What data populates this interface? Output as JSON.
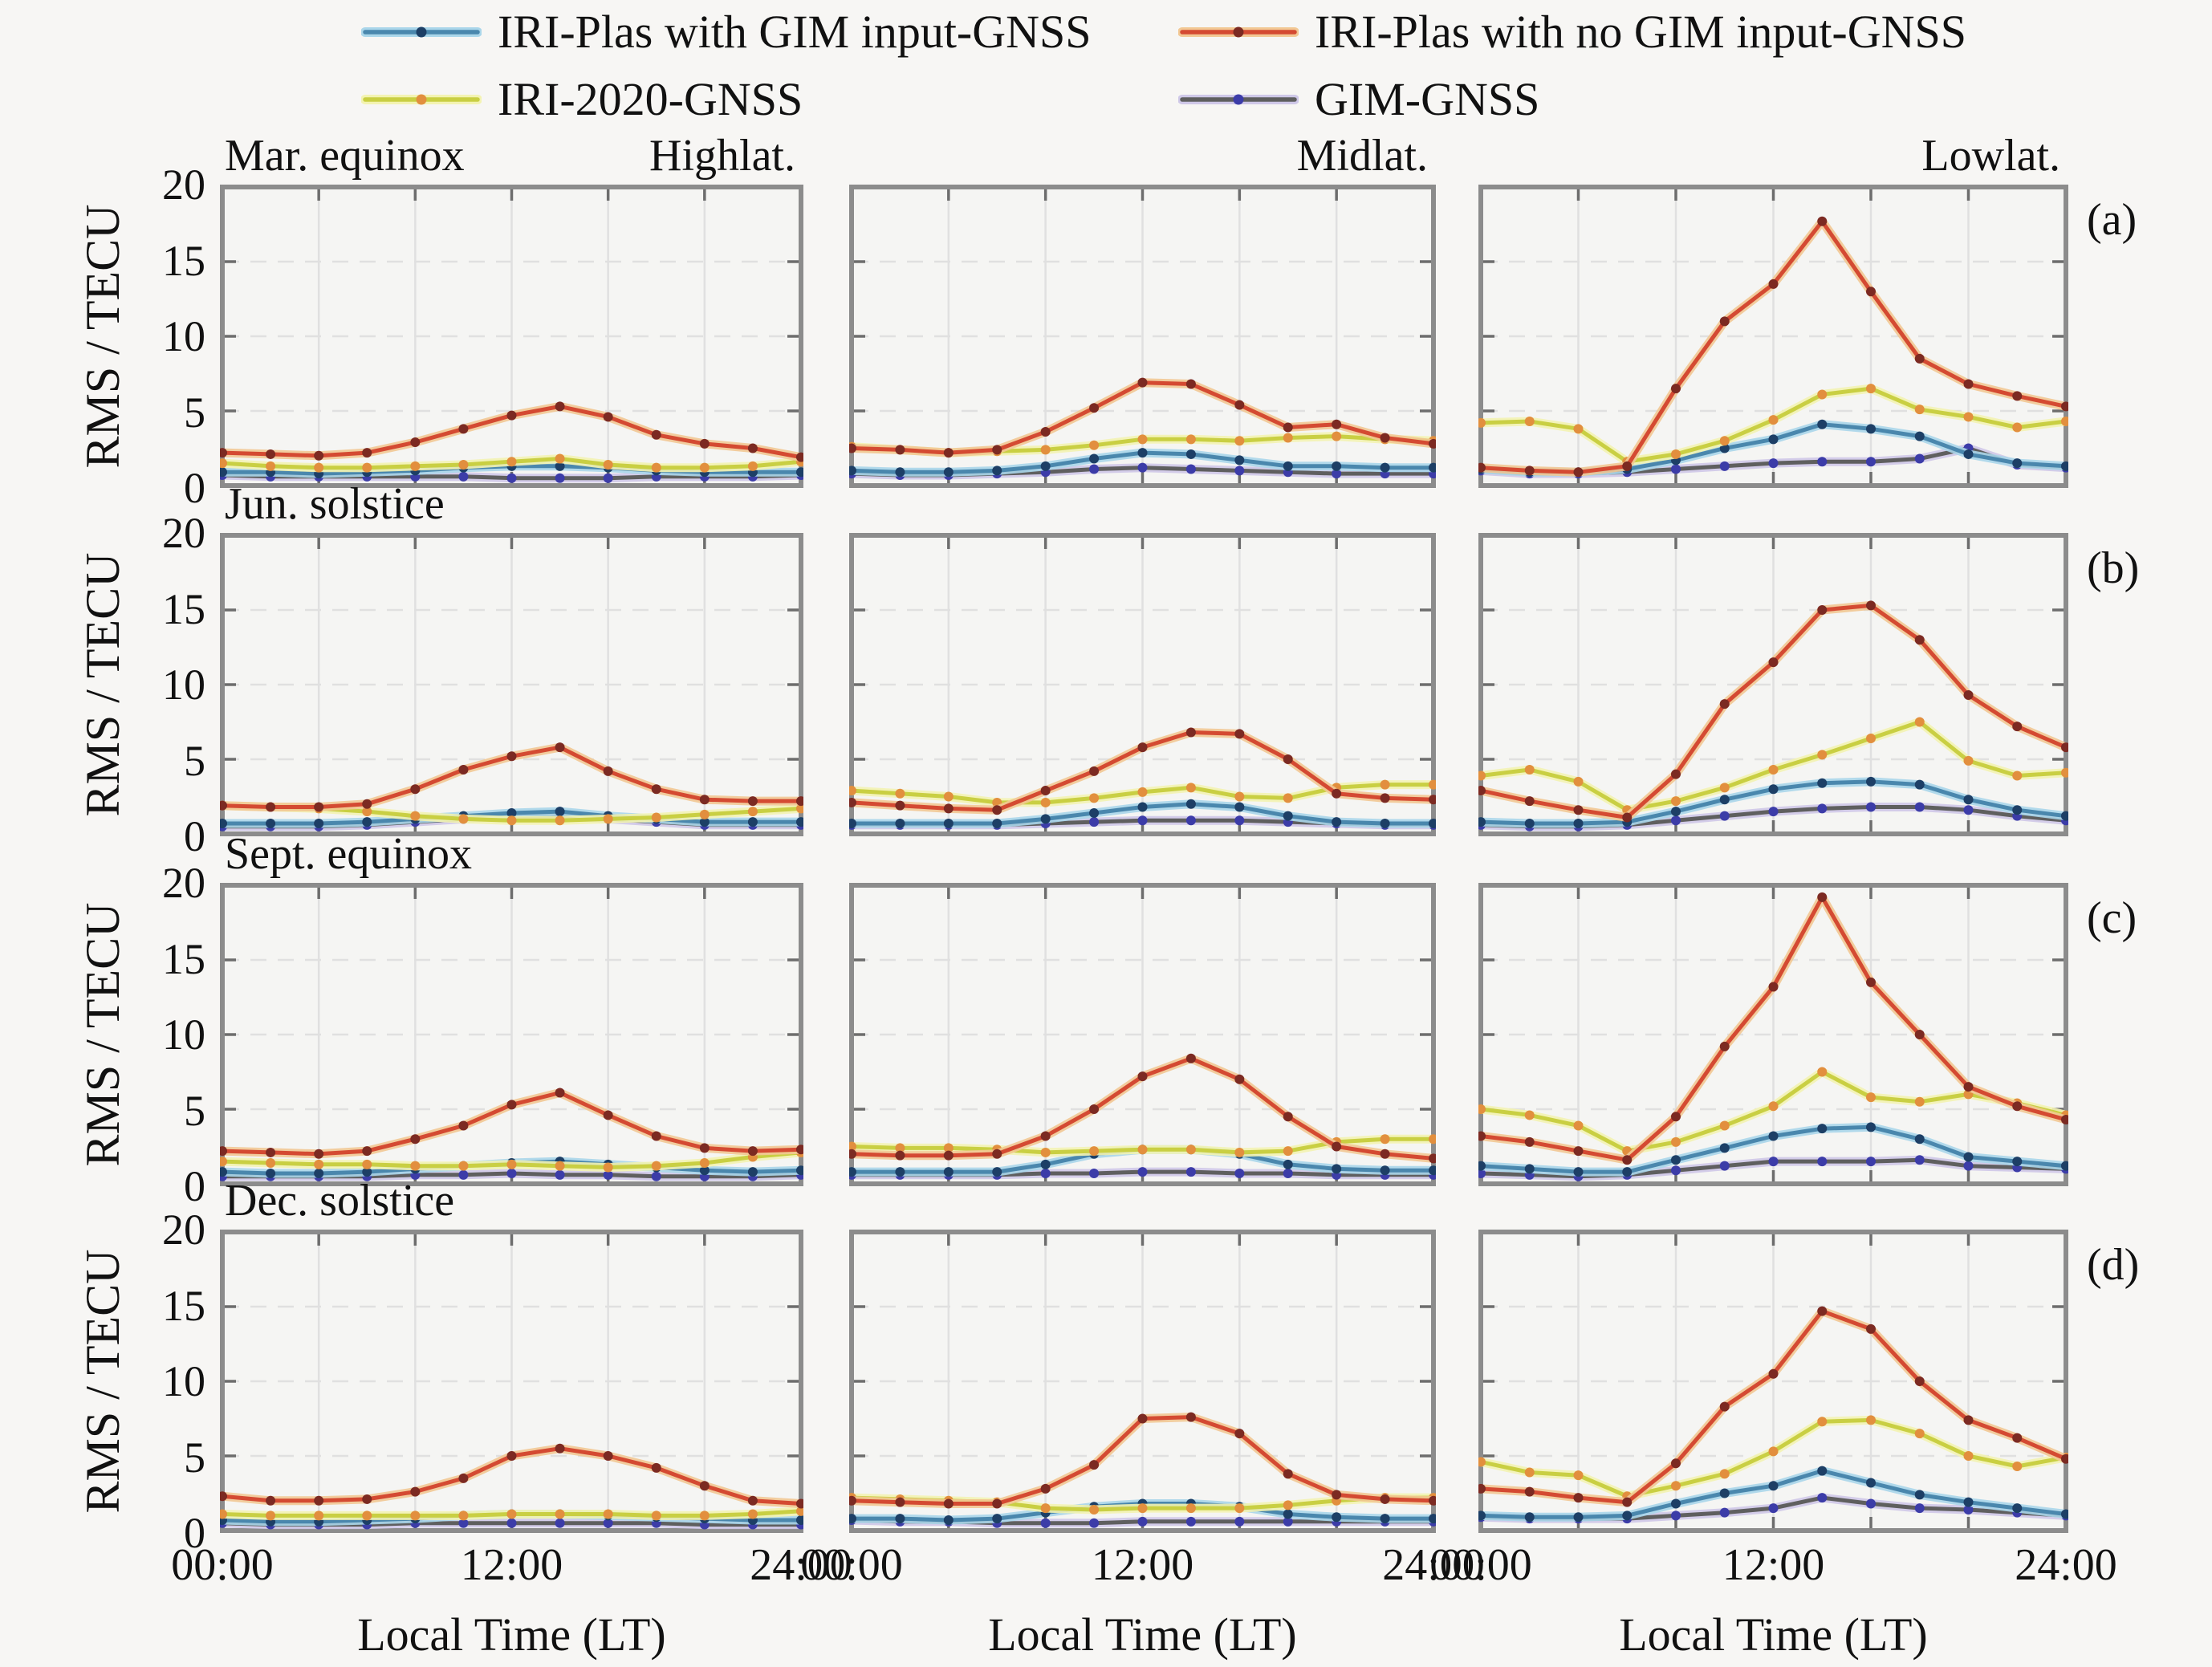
{
  "axes": {
    "ylabel": "RMS / TECU",
    "xlabel": "Local Time (LT)",
    "x_tick_labels": [
      "00:00",
      "12:00",
      "24:00"
    ],
    "y_tick_labels": [
      "20",
      "15",
      "10",
      "5",
      "0"
    ]
  },
  "colors": {
    "background": "#f7f6f4",
    "plot_background": "#f5f5f3",
    "frame": "#8c8c8c",
    "gridline": "#e0e0e0"
  },
  "chart_data": {
    "type": "line",
    "x_hours": [
      0,
      2,
      4,
      6,
      8,
      10,
      12,
      14,
      16,
      18,
      20,
      22,
      24
    ],
    "xlim_hours": [
      0,
      24
    ],
    "ylim": [
      0,
      20
    ],
    "y_gridlines": [
      5,
      10,
      15
    ],
    "x_gridlines_hours": [
      4,
      8,
      12,
      16,
      20
    ],
    "legend_position": "top",
    "grid": "on",
    "series_defs": [
      {
        "id": "iri_plas_gim",
        "label": "IRI-Plas with GIM input-GNSS",
        "line": "#4a87ad",
        "halo": "#aad6ea",
        "marker": "#1d3f66"
      },
      {
        "id": "iri_plas_no_gim",
        "label": "IRI-Plas with no GIM input-GNSS",
        "line": "#d44a32",
        "halo": "#f2c894",
        "marker": "#7c2a22"
      },
      {
        "id": "iri_2020",
        "label": "IRI-2020-GNSS",
        "line": "#c9cf43",
        "halo": "#f3f3b2",
        "marker": "#e28f3e"
      },
      {
        "id": "gim",
        "label": "GIM-GNSS",
        "line": "#5f5f5f",
        "halo": "#cfc8e8",
        "marker": "#3c3ca8"
      }
    ],
    "seasons": [
      {
        "name": "Mar. equinox",
        "letter": "(a)",
        "panels": [
          {
            "latitude": "Highlat.",
            "series": {
              "iri_plas_gim": [
                0.9,
                0.9,
                0.8,
                0.9,
                1.0,
                1.2,
                1.3,
                1.3,
                1.2,
                1.0,
                0.9,
                0.9,
                0.9
              ],
              "iri_plas_no_gim": [
                2.2,
                2.1,
                2.0,
                2.2,
                2.9,
                3.8,
                4.7,
                5.3,
                4.6,
                3.4,
                2.8,
                2.5,
                1.9
              ],
              "iri_2020": [
                1.5,
                1.3,
                1.2,
                1.2,
                1.3,
                1.4,
                1.6,
                1.8,
                1.4,
                1.2,
                1.2,
                1.3,
                1.6
              ],
              "gim": [
                0.7,
                0.6,
                0.6,
                0.6,
                0.6,
                0.6,
                0.5,
                0.5,
                0.5,
                0.6,
                0.6,
                0.6,
                0.7
              ]
            }
          },
          {
            "latitude": "Midlat.",
            "series": {
              "iri_plas_gim": [
                1.0,
                0.9,
                0.9,
                1.0,
                1.3,
                1.8,
                2.2,
                2.1,
                1.7,
                1.3,
                1.3,
                1.2,
                1.2
              ],
              "iri_plas_no_gim": [
                2.5,
                2.4,
                2.2,
                2.4,
                3.6,
                5.2,
                6.9,
                6.8,
                5.4,
                3.9,
                4.1,
                3.2,
                2.8
              ],
              "iri_2020": [
                2.6,
                2.4,
                2.2,
                2.3,
                2.4,
                2.7,
                3.1,
                3.1,
                3.0,
                3.2,
                3.3,
                3.1,
                3.0
              ],
              "gim": [
                0.8,
                0.7,
                0.7,
                0.8,
                0.9,
                1.1,
                1.2,
                1.1,
                1.0,
                0.9,
                0.8,
                0.8,
                0.8
              ]
            }
          },
          {
            "latitude": "Lowlat.",
            "series": {
              "iri_plas_gim": [
                1.1,
                0.9,
                0.9,
                1.1,
                1.7,
                2.5,
                3.1,
                4.1,
                3.8,
                3.3,
                2.1,
                1.5,
                1.3
              ],
              "iri_plas_no_gim": [
                1.2,
                1.0,
                0.9,
                1.3,
                6.5,
                11.0,
                13.5,
                17.7,
                13.0,
                8.5,
                6.8,
                6.0,
                5.3
              ],
              "iri_2020": [
                4.2,
                4.3,
                3.8,
                1.6,
                2.1,
                3.0,
                4.4,
                6.1,
                6.5,
                5.1,
                4.6,
                3.9,
                4.3
              ],
              "gim": [
                1.0,
                0.8,
                0.8,
                0.9,
                1.1,
                1.3,
                1.5,
                1.6,
                1.6,
                1.8,
                2.5,
                1.4,
                1.2
              ]
            }
          }
        ]
      },
      {
        "name": "Jun. solstice",
        "letter": "(b)",
        "panels": [
          {
            "latitude": "Highlat.",
            "series": {
              "iri_plas_gim": [
                0.7,
                0.7,
                0.7,
                0.8,
                1.0,
                1.2,
                1.4,
                1.5,
                1.2,
                1.0,
                0.8,
                0.8,
                0.8
              ],
              "iri_plas_no_gim": [
                1.9,
                1.8,
                1.8,
                2.0,
                3.0,
                4.3,
                5.2,
                5.8,
                4.2,
                3.0,
                2.3,
                2.2,
                2.2
              ],
              "iri_2020": [
                1.9,
                1.8,
                1.7,
                1.5,
                1.2,
                1.0,
                0.9,
                0.9,
                1.0,
                1.1,
                1.3,
                1.5,
                1.7
              ],
              "gim": [
                0.5,
                0.5,
                0.5,
                0.6,
                0.8,
                1.0,
                1.2,
                1.2,
                1.0,
                0.8,
                0.6,
                0.6,
                0.6
              ]
            }
          },
          {
            "latitude": "Midlat.",
            "series": {
              "iri_plas_gim": [
                0.7,
                0.7,
                0.7,
                0.7,
                1.0,
                1.4,
                1.8,
                2.0,
                1.8,
                1.2,
                0.8,
                0.7,
                0.7
              ],
              "iri_plas_no_gim": [
                2.1,
                1.9,
                1.7,
                1.6,
                2.9,
                4.2,
                5.8,
                6.8,
                6.7,
                5.0,
                2.7,
                2.4,
                2.3
              ],
              "iri_2020": [
                2.9,
                2.7,
                2.5,
                2.1,
                2.1,
                2.4,
                2.8,
                3.1,
                2.5,
                2.4,
                3.1,
                3.3,
                3.3
              ],
              "gim": [
                0.6,
                0.6,
                0.6,
                0.6,
                0.7,
                0.8,
                0.9,
                0.9,
                0.9,
                0.8,
                0.7,
                0.6,
                0.6
              ]
            }
          },
          {
            "latitude": "Lowlat.",
            "series": {
              "iri_plas_gim": [
                0.8,
                0.7,
                0.7,
                0.8,
                1.5,
                2.3,
                3.0,
                3.4,
                3.5,
                3.3,
                2.3,
                1.6,
                1.2
              ],
              "iri_plas_no_gim": [
                2.9,
                2.2,
                1.6,
                1.1,
                4.0,
                8.7,
                11.5,
                15.0,
                15.3,
                13.0,
                9.3,
                7.2,
                5.8
              ],
              "iri_2020": [
                3.9,
                4.3,
                3.5,
                1.6,
                2.2,
                3.1,
                4.3,
                5.3,
                6.4,
                7.5,
                4.9,
                3.9,
                4.1
              ],
              "gim": [
                0.6,
                0.5,
                0.5,
                0.6,
                0.9,
                1.2,
                1.5,
                1.7,
                1.8,
                1.8,
                1.6,
                1.2,
                0.9
              ]
            }
          }
        ]
      },
      {
        "name": "Sept. equinox",
        "letter": "(c)",
        "panels": [
          {
            "latitude": "Highlat.",
            "series": {
              "iri_plas_gim": [
                0.8,
                0.7,
                0.7,
                0.8,
                1.0,
                1.2,
                1.4,
                1.5,
                1.3,
                1.1,
                0.9,
                0.8,
                0.9
              ],
              "iri_plas_no_gim": [
                2.2,
                2.1,
                2.0,
                2.2,
                3.0,
                3.9,
                5.3,
                6.1,
                4.6,
                3.2,
                2.4,
                2.2,
                2.3
              ],
              "iri_2020": [
                1.5,
                1.4,
                1.3,
                1.3,
                1.2,
                1.2,
                1.3,
                1.2,
                1.1,
                1.2,
                1.4,
                1.8,
                2.1
              ],
              "gim": [
                0.5,
                0.5,
                0.5,
                0.5,
                0.6,
                0.6,
                0.7,
                0.6,
                0.6,
                0.5,
                0.5,
                0.5,
                0.6
              ]
            }
          },
          {
            "latitude": "Midlat.",
            "series": {
              "iri_plas_gim": [
                0.8,
                0.8,
                0.8,
                0.8,
                1.3,
                2.0,
                2.3,
                2.3,
                2.0,
                1.3,
                1.0,
                0.9,
                0.9
              ],
              "iri_plas_no_gim": [
                2.0,
                1.9,
                1.9,
                2.0,
                3.2,
                5.0,
                7.2,
                8.4,
                7.0,
                4.5,
                2.5,
                2.0,
                1.7
              ],
              "iri_2020": [
                2.5,
                2.4,
                2.4,
                2.3,
                2.1,
                2.2,
                2.3,
                2.3,
                2.1,
                2.2,
                2.8,
                3.0,
                3.0
              ],
              "gim": [
                0.6,
                0.6,
                0.6,
                0.6,
                0.7,
                0.7,
                0.8,
                0.8,
                0.7,
                0.7,
                0.6,
                0.6,
                0.6
              ]
            }
          },
          {
            "latitude": "Lowlat.",
            "series": {
              "iri_plas_gim": [
                1.2,
                1.0,
                0.8,
                0.8,
                1.6,
                2.4,
                3.2,
                3.7,
                3.8,
                3.0,
                1.8,
                1.5,
                1.2
              ],
              "iri_plas_no_gim": [
                3.2,
                2.8,
                2.2,
                1.6,
                4.5,
                9.2,
                13.2,
                19.2,
                13.5,
                10.0,
                6.5,
                5.2,
                4.3
              ],
              "iri_2020": [
                5.0,
                4.6,
                3.9,
                2.2,
                2.8,
                3.9,
                5.2,
                7.5,
                5.8,
                5.5,
                6.0,
                5.4,
                4.6
              ],
              "gim": [
                0.7,
                0.6,
                0.5,
                0.6,
                0.9,
                1.2,
                1.5,
                1.5,
                1.5,
                1.6,
                1.2,
                1.1,
                1.0
              ]
            }
          }
        ]
      },
      {
        "name": "Dec. solstice",
        "letter": "(d)",
        "panels": [
          {
            "latitude": "Highlat.",
            "series": {
              "iri_plas_gim": [
                0.7,
                0.6,
                0.6,
                0.7,
                0.8,
                1.0,
                1.1,
                1.1,
                1.0,
                0.9,
                0.8,
                0.7,
                0.7
              ],
              "iri_plas_no_gim": [
                2.3,
                2.0,
                2.0,
                2.1,
                2.6,
                3.5,
                5.0,
                5.5,
                5.0,
                4.2,
                3.0,
                2.0,
                1.8
              ],
              "iri_2020": [
                1.1,
                1.0,
                1.0,
                1.0,
                1.0,
                1.0,
                1.1,
                1.1,
                1.1,
                1.0,
                1.0,
                1.1,
                1.3
              ],
              "gim": [
                0.5,
                0.4,
                0.4,
                0.4,
                0.5,
                0.5,
                0.5,
                0.5,
                0.5,
                0.5,
                0.4,
                0.4,
                0.4
              ]
            }
          },
          {
            "latitude": "Midlat.",
            "series": {
              "iri_plas_gim": [
                0.8,
                0.8,
                0.7,
                0.8,
                1.2,
                1.6,
                1.8,
                1.8,
                1.6,
                1.1,
                0.9,
                0.8,
                0.8
              ],
              "iri_plas_no_gim": [
                2.0,
                1.9,
                1.8,
                1.8,
                2.8,
                4.4,
                7.5,
                7.6,
                6.5,
                3.8,
                2.4,
                2.1,
                2.0
              ],
              "iri_2020": [
                2.2,
                2.1,
                2.0,
                1.9,
                1.5,
                1.4,
                1.5,
                1.5,
                1.5,
                1.7,
                2.0,
                2.2,
                2.2
              ],
              "gim": [
                0.7,
                0.6,
                0.6,
                0.5,
                0.5,
                0.5,
                0.6,
                0.6,
                0.6,
                0.6,
                0.6,
                0.6,
                0.6
              ]
            }
          },
          {
            "latitude": "Lowlat.",
            "series": {
              "iri_plas_gim": [
                1.0,
                0.9,
                0.9,
                1.0,
                1.8,
                2.5,
                3.0,
                4.0,
                3.2,
                2.4,
                1.9,
                1.5,
                1.1
              ],
              "iri_plas_no_gim": [
                2.8,
                2.6,
                2.2,
                1.9,
                4.5,
                8.3,
                10.5,
                14.7,
                13.5,
                10.0,
                7.4,
                6.2,
                4.8
              ],
              "iri_2020": [
                4.6,
                3.9,
                3.7,
                2.3,
                3.0,
                3.8,
                5.3,
                7.3,
                7.4,
                6.5,
                5.0,
                4.3,
                4.9
              ],
              "gim": [
                0.9,
                0.8,
                0.8,
                0.8,
                1.0,
                1.2,
                1.5,
                2.2,
                1.8,
                1.5,
                1.4,
                1.2,
                1.0
              ]
            }
          }
        ]
      }
    ]
  }
}
